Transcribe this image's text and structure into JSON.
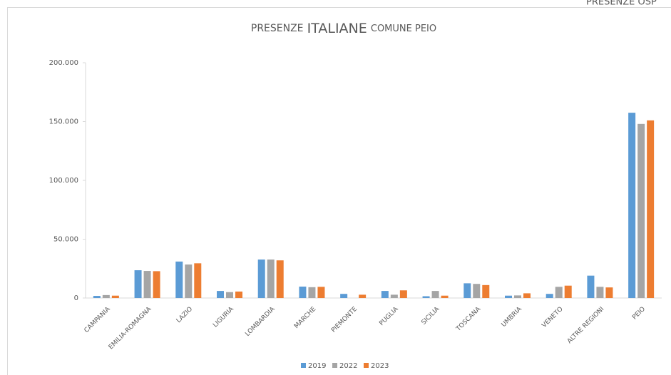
{
  "chart_data": {
    "type": "bar",
    "corner_text": "PRESENZE OSP",
    "title": [
      "PRESENZE",
      "ITALIANE",
      "COMUNE PEIO"
    ],
    "categories": [
      "CAMPANIA",
      "EMILIA-ROMAGNA",
      "LAZIO",
      "LIGURIA",
      "LOMBARDIA",
      "MARCHE",
      "PIEMONTE",
      "PUGLIA",
      "SICILIA",
      "TOSCANA",
      "UMBRIA",
      "VENETO",
      "ALTRE REGIONI",
      "PEIO"
    ],
    "series": [
      {
        "name": "2019",
        "color": "#5b9bd5",
        "values": [
          1800,
          23600,
          31000,
          6000,
          32700,
          9700,
          3500,
          6000,
          1500,
          12500,
          2000,
          3500,
          19000,
          157500
        ]
      },
      {
        "name": "2022",
        "color": "#a5a5a5",
        "values": [
          2500,
          23000,
          28500,
          5000,
          32700,
          9200,
          0,
          2800,
          6000,
          12000,
          2200,
          9500,
          9500,
          148000
        ]
      },
      {
        "name": "2023",
        "color": "#ed7d31",
        "values": [
          2000,
          22800,
          29500,
          5500,
          32000,
          9500,
          2800,
          6500,
          2000,
          11000,
          4000,
          10500,
          9000,
          151000
        ]
      }
    ],
    "ylim": [
      0,
      200000
    ],
    "yticks": [
      {
        "value": 0,
        "label": "0"
      },
      {
        "value": 50000,
        "label": "50.000"
      },
      {
        "value": 100000,
        "label": "100.000"
      },
      {
        "value": 150000,
        "label": "150.000"
      },
      {
        "value": 200000,
        "label": "200.000"
      }
    ],
    "grid": false,
    "legend": "bottom"
  }
}
